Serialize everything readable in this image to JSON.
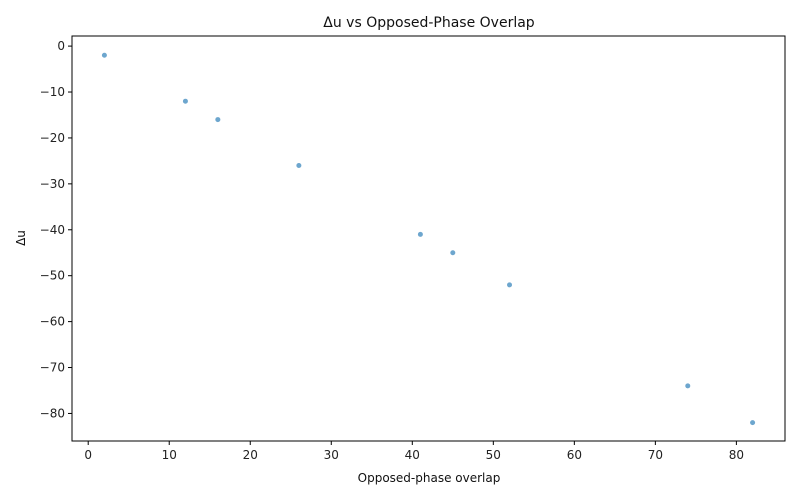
{
  "chart_data": {
    "type": "scatter",
    "title": "Δu vs Opposed-Phase Overlap",
    "xlabel": "Opposed-phase overlap",
    "ylabel": "Δu",
    "xlim": [
      -2,
      86
    ],
    "ylim": [
      -86,
      2.2
    ],
    "x_ticks": [
      0,
      10,
      20,
      30,
      40,
      50,
      60,
      70,
      80
    ],
    "y_ticks": [
      0,
      -10,
      -20,
      -30,
      -40,
      -50,
      -60,
      -70,
      -80
    ],
    "x_tick_labels": [
      "0",
      "10",
      "20",
      "30",
      "40",
      "50",
      "60",
      "70",
      "80"
    ],
    "y_tick_labels": [
      "0",
      "−10",
      "−20",
      "−30",
      "−40",
      "−50",
      "−60",
      "−70",
      "−80"
    ],
    "grid": false,
    "marker_color": "#1f77b4",
    "points": [
      {
        "x": 2,
        "y": -2
      },
      {
        "x": 12,
        "y": -12
      },
      {
        "x": 16,
        "y": -16
      },
      {
        "x": 26,
        "y": -26
      },
      {
        "x": 41,
        "y": -41
      },
      {
        "x": 45,
        "y": -45
      },
      {
        "x": 52,
        "y": -52
      },
      {
        "x": 74,
        "y": -74
      },
      {
        "x": 82,
        "y": -82
      }
    ]
  }
}
